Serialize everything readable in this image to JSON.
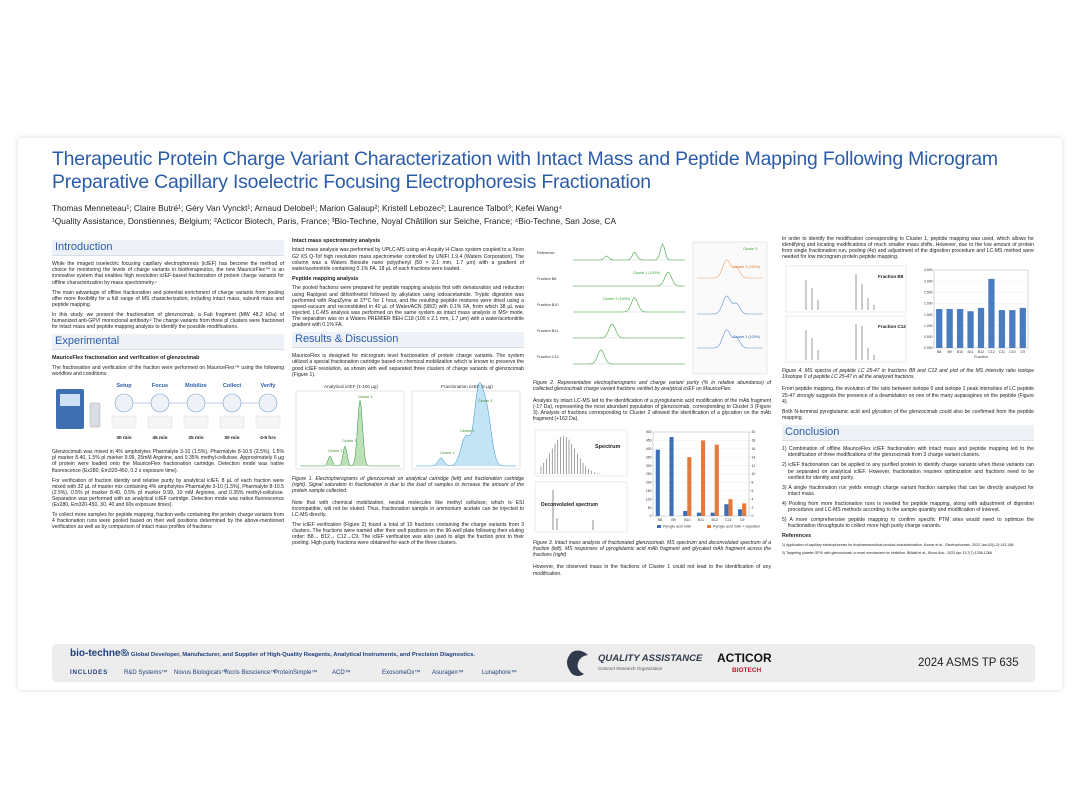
{
  "header": {
    "title": "Therapeutic Protein Charge Variant Characterization with Intact Mass and Peptide Mapping Following Microgram Preparative Capillary Isoelectric Focusing Electrophoresis Fractionation",
    "authors": "Thomas Menneteau¹; Claire Butré¹; Géry Van Vynckt¹; Arnaud Delobel¹; Marion Galaup²; Kristell Lebozec²; Laurence Talbot³; Kefei Wang⁴",
    "affiliations": "¹Quality Assistance, Donstiennes, Belgium; ²Acticor Biotech, Paris, France; ³Bio-Techne, Noyal Châtillon sur Seiche, France; ⁴Bio-Techne, San Jose, CA"
  },
  "introduction": {
    "heading": "Introduction",
    "paragraphs": [
      "While the imaged isoelectric focusing capillary electrophoresis (icIEF) has become the method of choice for monitoring the levels of charge variants in biotherapeutics, the new MauriceFlex™ is an innovative system that enables high resolution icIEF-based fractionation of protein charge variants for offline characterization by mass spectrometry.¹",
      "The main advantage of offline fractionation and potential enrichment of charge variants from pooling offer more flexibility for a full range of MS characterization, including intact mass, subunit mass and peptide mapping.",
      "In this study, we present the fractionation of glenzocimab, a Fab fragment (MW 48.2 kDa) of humanized anti-GPVI monoclonal antibody.² The charge variants from three pI clusters were fractioned for intact mass and peptide mapping analysis to identify the possible modifications."
    ]
  },
  "experimental": {
    "heading": "Experimental",
    "subheading": "MauriceFlex fractionation and verification of glenzocimab",
    "paragraphs": [
      "The fractionation and verification of the fraction were performed on MauriceFlex™ using the following workflow and conditions:",
      "Glenzocimab was mixed in 4% ampholytes Pharmalyte 3-10 (1.5%), Pharmalyte 8-10.5 (2.5%), 1.5% pI marker 8.40, 1.5% pI marker 9.99, 25mM Arginine, and 0.35% methyl-cellulose. Approximately 6 µg of protein were loaded onto the MauriceFlex fractionation cartridge. Detection mode was native fluorescence (Ex280, Em320-450, 0.2 s exposure time).",
      "For verification of fraction identity and relative purity by analytical icIEF, 8 µL of each fraction were mixed with 32 µL of master mix containing 4% ampholytes Pharmalyte 3-10 (1.5%), Pharmalyte 8-10.5 (2.5%), 0.5% pI marker 8.40, 0.5% pI marker 9.99, 10 mM Arginine, and 0.35% methyl-cellulose. Separation was performed with an analytical icIEF cartridge. Detection mode was native fluorescence (Ex280, Em320-450, 30, 40 and 60s exposure times).",
      "To collect more samples for peptide mapping, fraction wells containing the protein charge variants from 4 fractionation runs were pooled based on their well positions determined by the above-mentioned verification as well as by comparison of intact mass profiles of fractions"
    ],
    "workflow": [
      {
        "label": "Setup",
        "time": "30 min"
      },
      {
        "label": "Focus",
        "time": "45 min"
      },
      {
        "label": "Mobilize",
        "time": "25 min"
      },
      {
        "label": "Collect",
        "time": "30 min"
      },
      {
        "label": "Verify",
        "time": "4-5 hrs"
      }
    ]
  },
  "methods": {
    "intact_ms": {
      "heading": "Intact mass spectrometry analysis",
      "text": "Intact mass analysis was performed by UPLC-MS using an Acquity H-Class system coupled to a Xevo G2 XS Q-Tof high resolution mass spectrometer controlled by UNIFI 1.9.4 (Waters Corporation). The column was a Waters Biosuite nano polyphenyl (50 × 2.1 mm, 1.7 µm) with a gradient of water/acetonitrile containing 0.1% FA. 18 µL of each fractions were loaded."
    },
    "peptide_mapping": {
      "heading": "Peptide mapping analysis",
      "text": "The pooled fractions were prepared for peptide mapping analysis first with denaturation and reduction using Rapigest and dithiothreitol followed by alkylation using iodoacetamide. Tryptic digestion was performed with RapiZyme at 37°C for 1 hour, and the resulting peptide mixtures were dried using a speed-vacuum and reconstituted in 40 µL of Water/ACN (98/2) with 0.1% FA, from which 38 µL was injected. LC-MS analysis was performed on the same system as intact mass analysis in MSᵉ mode. The separation was on a Waters PREMIER BEH C18 (100 x 2.1 mm, 1.7 µm) with a water/acetonitrile gradient with 0.1% FA."
    }
  },
  "results": {
    "heading": "Results & Discussion",
    "paragraphs": [
      "MauriceFlex is designed for microgram level fractionation of protein charge variants. The system utilized a special fractionation cartridge based on chemical mobilization which is known to preserve the good icIEF resolution, as shown with well separated three clusters of charge variants of glenzocimab (Figure 1).",
      "Note that with chemical mobilization, neutral molecules like methyl cellulose, which is ESI incompatible, will not be eluted. Thus, fractionation sample in ammonium acetate can be injected to LC-MS directly.",
      "The icIEF verification (Figure 2) found a total of 10 fractions containing the charge variants from 3 clusters. The fractions were named after their well positions on the 96-well plate following their eluting order: B8→ B12→ C12→C9. The icIEF verification was also used to align the fraction prior to their pooling. High purity fractions were obtained for each of the three clusters.",
      "Analysis by intact LC-MS led to the identification of a pyroglutamic acid modification of the mAb fragment (-17 Da), representing the most abundant population of glenzocimab, corresponding to Cluster 3 (Figure 3). Analysis of fractions corresponding to Cluster 2 allowed the identification of a glycation on the mAb fragment (+162 Da).",
      "However, the observed mass in the fractions of Cluster 1 could not lead to the identification of any modification.",
      "In order to identify the modification corresponding to Cluster 1, peptide mapping was used, which allows for identifying and locating modifications of much smaller mass shifts. However, due to the low amount of protein from single fractionation run, pooling (4x) and adjustment of the digestion procedure and LC-MS method were needed for low microgram protein peptide mapping.",
      "From peptide mapping, the evolution of the ratio between isotope 0 and isotope 1 peak intensities of LC peptide 25-47 strongly suggests the presence of a deamidation on one of the many asparagines on the peptide (Figure 4).",
      "Both N-terminal pyroglutamic acid and glycation of the glenzocimab could also be confirmed from the peptide mapping."
    ]
  },
  "figures": {
    "figure_1": {
      "panel_titles": [
        "Analytical icIEF (1-100 µg)",
        "Fractionation icIEF (5 µg)"
      ],
      "peak_labels": [
        "Cluster 1",
        "Cluster 2",
        "Cluster 3"
      ],
      "caption": "Figure 1. Electropherograms of glenzocimab on analytical cartridge (left) and fractionation cartridge (right). Signal saturation in fractionation is due to the load of samples to increase the amount of the protein sample collected."
    },
    "figure_2": {
      "trace_labels": [
        "Reference",
        "Fraction B8",
        "Fraction B10",
        "Fraction B11",
        "Fraction C12"
      ],
      "purity_labels": [
        "Cluster 3",
        "Cluster 3 (100%)",
        "Cluster 1 (100%)",
        "Cluster 2 (100%)",
        "Cluster 1 (100%)"
      ],
      "caption": "Figure 2. Representative electropherograms and charge variant purity (% in relative abundance) of collected glenzocimab charge variant fractions verified by analytical icIEF on MauriceFlex."
    },
    "figure_3": {
      "panel_labels": [
        "Spectrum",
        "Deconvoluted spectrum"
      ],
      "caption": "Figure 3. Intact mass analysis of fractionated glenzocimab. MS spectrum and deconvoluted spectrum of a fraction (left). MS responses of pyroglutamic acid mAb fragment and glycated mAb fragment across the fractions (right)"
    },
    "figure_4": {
      "panel_labels": [
        "Fraction B8",
        "Fraction C12"
      ],
      "caption": "Figure 4. MS spectra of peptide LC 25-47 in fractions B8 and C12 and plot of the MS intensity ratio isotope 1/isotope 0 of peptide LC 25-47 in all the analyzed fractions."
    }
  },
  "chart_data": [
    {
      "type": "bar",
      "categories": [
        "B8",
        "B9",
        "B10",
        "B11",
        "B12",
        "C11",
        "C9"
      ],
      "series": [
        {
          "name": "Pyroglu acid mAb",
          "color": "#3d6fb8",
          "values": [
            395,
            470,
            30,
            20,
            20,
            70,
            40
          ]
        },
        {
          "name": "Pyroglu acid mAb + Glycation",
          "color": "#e27c3c",
          "axis": "y2",
          "values": [
            0,
            0,
            14,
            18,
            17,
            4,
            3
          ]
        }
      ],
      "ylim": [
        0,
        500
      ],
      "yticks": [
        0,
        50,
        100,
        150,
        200,
        250,
        300,
        350,
        400,
        450,
        500
      ],
      "y2lim": [
        0,
        20
      ],
      "y2ticks": [
        0,
        2,
        4,
        6,
        8,
        10,
        12,
        14,
        16,
        18,
        20
      ]
    },
    {
      "type": "bar",
      "categories": [
        "B8",
        "B9",
        "B10",
        "B11",
        "B12",
        "C12",
        "C11",
        "C10",
        "C9"
      ],
      "series": [
        {
          "color": "#4a7cc0",
          "values": [
            1.75,
            1.75,
            1.75,
            1.65,
            1.8,
            3.1,
            1.7,
            1.7,
            1.8
          ]
        }
      ],
      "xlabel": "Fraction",
      "ylim": [
        0,
        3.5
      ],
      "yticks": [
        {
          "value": 0,
          "label": "0.000"
        },
        {
          "value": 0.5,
          "label": "0.500"
        },
        {
          "value": 1,
          "label": "1.000"
        },
        {
          "value": 1.5,
          "label": "1.500"
        },
        {
          "value": 2,
          "label": "2.000"
        },
        {
          "value": 2.5,
          "label": "2.500"
        },
        {
          "value": 3,
          "label": "3.000"
        },
        {
          "value": 3.5,
          "label": "3.500"
        }
      ]
    }
  ],
  "conclusion": {
    "heading": "Conclusion",
    "items": [
      "1) Combination of offline MauriceFlex icIEF fractionation with intact mass and peptide mapping led to the identification of three modifications of the glenzocimab from 3 charge variant clusters.",
      "2) icIEF fractionation can be applied to any purified protein to identify charge variants when these variants can be separated on analytical icIEF. However, fractionation requires optimization and fractions need to be verified for identity and purity.",
      "3) A single fractionation run yields enough charge variant fraction samples that can be directly analyzed for intact mass.",
      "4) Pooling from more fractionation runs is needed for peptide mapping, along with adjustment of digestion procedures and LC-MS methods according to the sample quantity and modification of interest.",
      "5) A more comprehensive peptide mapping to confirm specific PTM sites would need to optimize the fractionation throughputs to collect more high purity charge variants."
    ]
  },
  "references": {
    "heading": "References",
    "items": [
      "1) Application of capillary electrophoresis for biopharmaceutical product characterization. Kumar et al., Electrophoresis, 2022 Jan;43(1-2):143-166",
      "2) Targeting platelet GPVI with glenzocimab: a novel mechanism for inhibition. Billiald et al., Blood Adv., 2023 Apr 11;7(7):1258-1268."
    ]
  },
  "footer": {
    "brand": "bio-techne®",
    "tagline": "// Global Developer, Manufacturer, and Supplier of High-Quality Reagents, Analytical Instruments, and Precision Diagnostics.",
    "includes": "INCLUDES",
    "partners": [
      "R&D Systems™",
      "Novus Biologicals™",
      "Tocris Bioscience™",
      "ProteinSimple™",
      "ACD™",
      "ExosomeDx™",
      "Asuragen™",
      "Lunaphore™"
    ],
    "qa_name": "QUALITY ASSISTANCE",
    "qa_sub": "Contract Research Organization",
    "acticor": "ACTICOR",
    "acticor_sub": "BIOTECH",
    "poster_id": "2024 ASMS TP 635"
  }
}
